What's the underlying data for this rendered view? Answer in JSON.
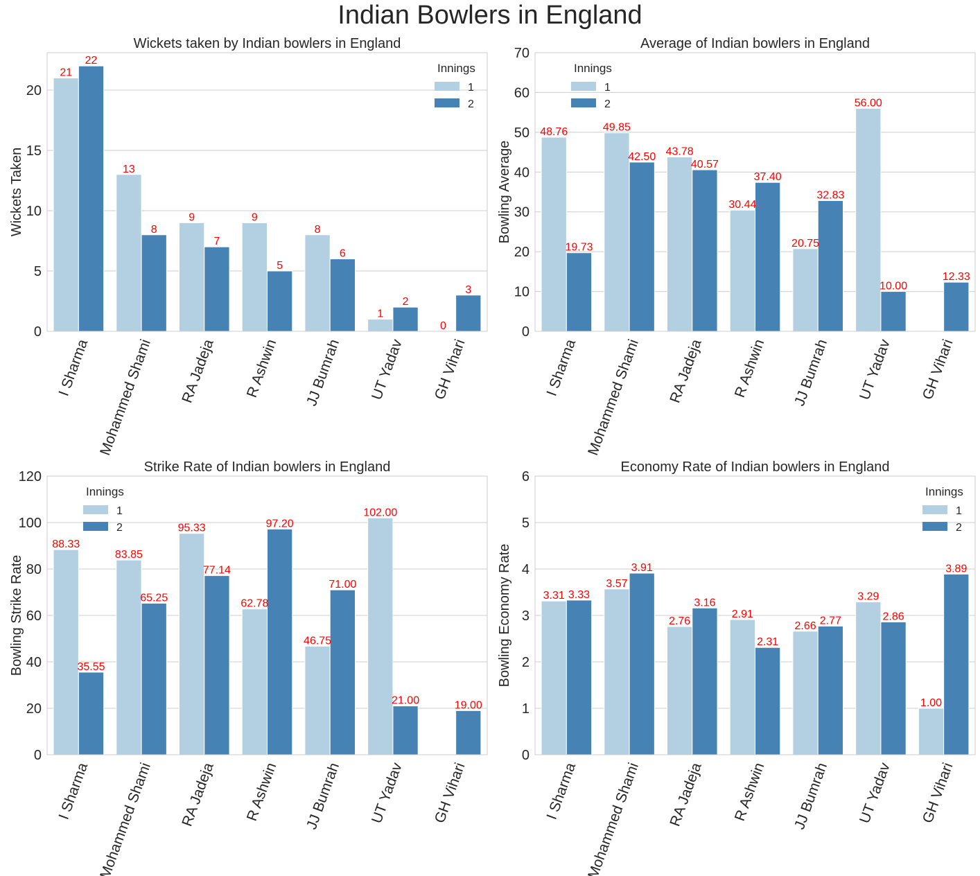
{
  "title": "Indian Bowlers in England",
  "colors": {
    "innings_1": "#b3cfe2",
    "innings_2": "#4683b4",
    "data_label": "#ff0000",
    "grid": "#cccccc",
    "frame": "#cccccc"
  },
  "chart_data": [
    {
      "type": "bar",
      "title": "Wickets taken by Indian bowlers in England",
      "xlabel": "",
      "ylabel": "Wickets Taken",
      "ylim": [
        0,
        23.1
      ],
      "yticks": [
        0,
        5,
        10,
        15,
        20
      ],
      "legend": {
        "title": "Innings",
        "placement": "top-right"
      },
      "categories": [
        "I Sharma",
        "Mohammed Shami",
        "RA Jadeja",
        "R Ashwin",
        "JJ Bumrah",
        "UT Yadav",
        "GH Vihari"
      ],
      "series": [
        {
          "name": "1",
          "values": [
            21,
            13,
            9,
            9,
            8,
            1,
            0
          ],
          "labels": [
            "21",
            "13",
            "9",
            "9",
            "8",
            "1",
            "0"
          ]
        },
        {
          "name": "2",
          "values": [
            22,
            8,
            7,
            5,
            6,
            2,
            3
          ],
          "labels": [
            "22",
            "8",
            "7",
            "5",
            "6",
            "2",
            "3"
          ]
        }
      ]
    },
    {
      "type": "bar",
      "title": "Average of Indian bowlers in England",
      "xlabel": "",
      "ylabel": "Bowling Average",
      "ylim": [
        0,
        70
      ],
      "yticks": [
        0,
        10,
        20,
        30,
        40,
        50,
        60,
        70
      ],
      "legend": {
        "title": "Innings",
        "placement": "top-left"
      },
      "categories": [
        "I Sharma",
        "Mohammed Shami",
        "RA Jadeja",
        "R Ashwin",
        "JJ Bumrah",
        "UT Yadav",
        "GH Vihari"
      ],
      "series": [
        {
          "name": "1",
          "values": [
            48.76,
            49.85,
            43.78,
            30.44,
            20.75,
            56.0,
            null
          ],
          "labels": [
            "48.76",
            "49.85",
            "43.78",
            "30.44",
            "20.75",
            "56.00",
            ""
          ]
        },
        {
          "name": "2",
          "values": [
            19.73,
            42.5,
            40.57,
            37.4,
            32.83,
            10.0,
            12.33
          ],
          "labels": [
            "19.73",
            "42.50",
            "40.57",
            "37.40",
            "32.83",
            "10.00",
            "12.33"
          ]
        }
      ]
    },
    {
      "type": "bar",
      "title": "Strike Rate of Indian bowlers in England",
      "xlabel": "",
      "ylabel": "Bowling Strike Rate",
      "ylim": [
        0,
        120
      ],
      "yticks": [
        0,
        20,
        40,
        60,
        80,
        100,
        120
      ],
      "legend": {
        "title": "Innings",
        "placement": "top-left"
      },
      "categories": [
        "I Sharma",
        "Mohammed Shami",
        "RA Jadeja",
        "R Ashwin",
        "JJ Bumrah",
        "UT Yadav",
        "GH Vihari"
      ],
      "series": [
        {
          "name": "1",
          "values": [
            88.33,
            83.85,
            95.33,
            62.78,
            46.75,
            102.0,
            null
          ],
          "labels": [
            "88.33",
            "83.85",
            "95.33",
            "62.78",
            "46.75",
            "102.00",
            ""
          ]
        },
        {
          "name": "2",
          "values": [
            35.55,
            65.25,
            77.14,
            97.2,
            71.0,
            21.0,
            19.0
          ],
          "labels": [
            "35.55",
            "65.25",
            "77.14",
            "97.20",
            "71.00",
            "21.00",
            "19.00"
          ]
        }
      ]
    },
    {
      "type": "bar",
      "title": "Economy Rate of Indian bowlers in England",
      "xlabel": "",
      "ylabel": "Bowling Economy Rate",
      "ylim": [
        0,
        6
      ],
      "yticks": [
        0,
        1,
        2,
        3,
        4,
        5,
        6
      ],
      "legend": {
        "title": "Innings",
        "placement": "top-right"
      },
      "categories": [
        "I Sharma",
        "Mohammed Shami",
        "RA Jadeja",
        "R Ashwin",
        "JJ Bumrah",
        "UT Yadav",
        "GH Vihari"
      ],
      "series": [
        {
          "name": "1",
          "values": [
            3.31,
            3.57,
            2.76,
            2.91,
            2.66,
            3.29,
            1.0
          ],
          "labels": [
            "3.31",
            "3.57",
            "2.76",
            "2.91",
            "2.66",
            "3.29",
            "1.00"
          ]
        },
        {
          "name": "2",
          "values": [
            3.33,
            3.91,
            3.16,
            2.31,
            2.77,
            2.86,
            3.89
          ],
          "labels": [
            "3.33",
            "3.91",
            "3.16",
            "2.31",
            "2.77",
            "2.86",
            "3.89"
          ]
        }
      ]
    }
  ]
}
